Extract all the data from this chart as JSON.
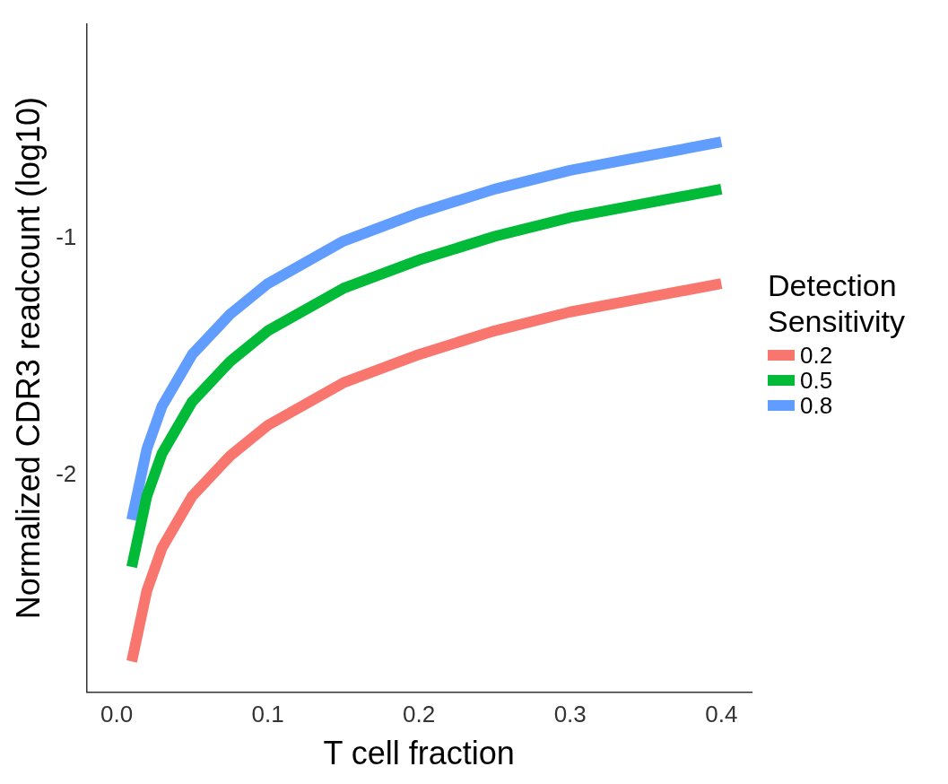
{
  "chart_data": {
    "type": "line",
    "xlabel": "T cell fraction",
    "ylabel": "Normalized CDR3 readcount (log10)",
    "legend_title": "Detection Sensitivity",
    "x": [
      0.01,
      0.02,
      0.03,
      0.05,
      0.075,
      0.1,
      0.15,
      0.2,
      0.25,
      0.3,
      0.35,
      0.4
    ],
    "series": [
      {
        "name": "0.2",
        "color": "#f8766d",
        "values": [
          -2.79,
          -2.49,
          -2.31,
          -2.09,
          -1.92,
          -1.79,
          -1.61,
          -1.49,
          -1.39,
          -1.31,
          -1.25,
          -1.19
        ]
      },
      {
        "name": "0.5",
        "color": "#00ba38",
        "values": [
          -2.39,
          -2.09,
          -1.91,
          -1.69,
          -1.52,
          -1.39,
          -1.21,
          -1.09,
          -0.99,
          -0.91,
          -0.85,
          -0.79
        ]
      },
      {
        "name": "0.8",
        "color": "#619cff",
        "values": [
          -2.19,
          -1.89,
          -1.71,
          -1.49,
          -1.32,
          -1.19,
          -1.01,
          -0.89,
          -0.79,
          -0.71,
          -0.65,
          -0.59
        ]
      }
    ],
    "xlim": [
      -0.02,
      0.42
    ],
    "xticks": [
      {
        "value": 0,
        "label": "0.0"
      },
      0.1,
      0.2,
      0.3,
      0.4
    ],
    "ylim": [
      -2.92,
      -0.09
    ],
    "yticks": [
      -2,
      -1
    ],
    "grid": false,
    "legend": "right",
    "marker": "none",
    "line_style": "solid"
  }
}
